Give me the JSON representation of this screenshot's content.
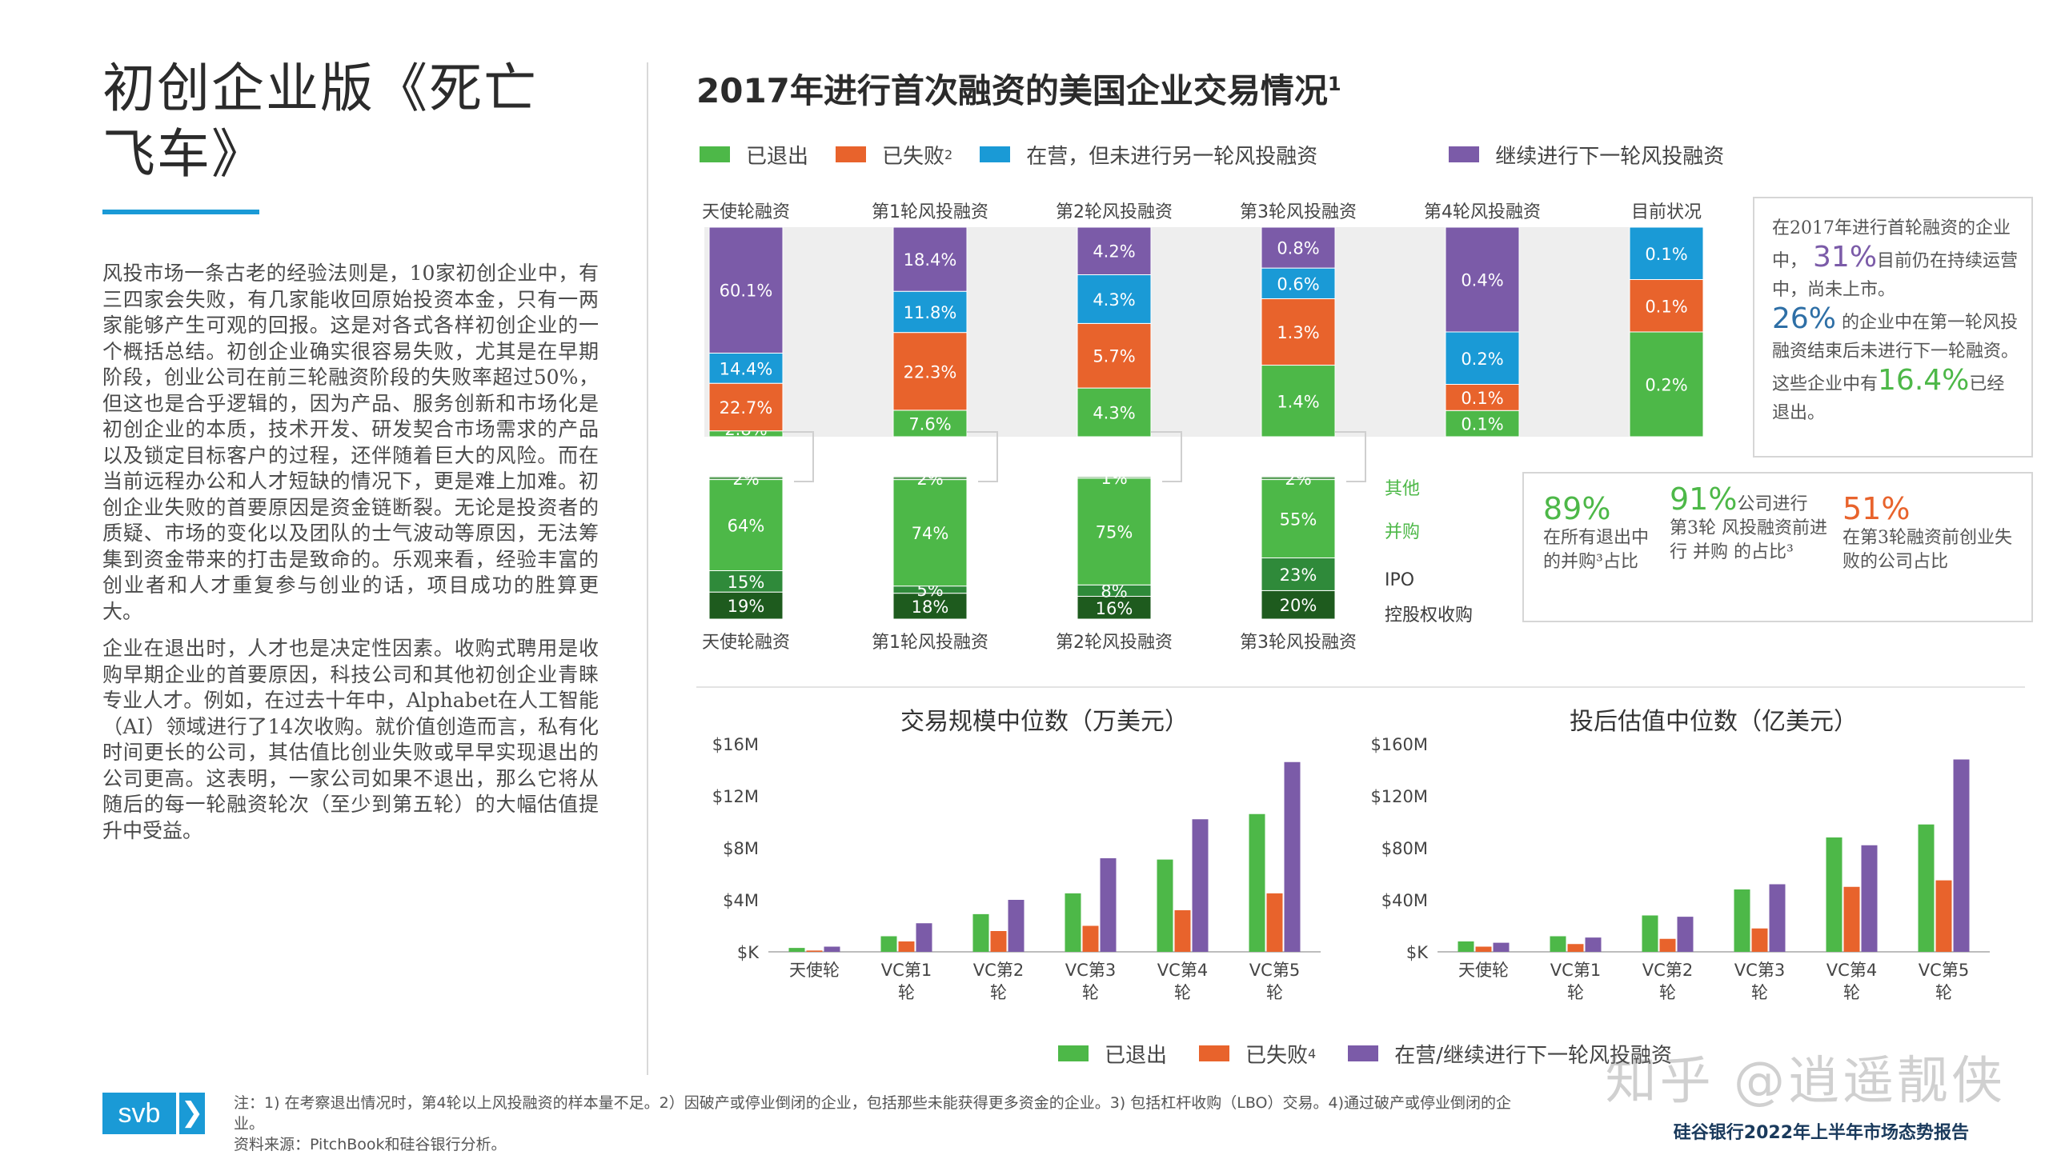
{
  "page": {
    "title_line1": "初创企业版《死亡",
    "title_line2": "飞车》",
    "paragraph1": "风投市场一条古老的经验法则是，10家初创企业中，有三四家会失败，有几家能收回原始投资本金，只有一两家能够产生可观的回报。这是对各式各样初创企业的一个概括总结。初创企业确实很容易失败，尤其是在早期阶段，创业公司在前三轮融资阶段的失败率超过50%，但这也是合乎逻辑的，因为产品、服务创新和市场化是初创企业的本质，技术开发、研发契合市场需求的产品以及锁定目标客户的过程，还伴随着巨大的风险。而在当前远程办公和人才短缺的情况下，更是难上加难。初创企业失败的首要原因是资金链断裂。无论是投资者的质疑、市场的变化以及团队的士气波动等原因，无法筹集到资金带来的打击是致命的。乐观来看，经验丰富的创业者和人才重复参与创业的话，项目成功的胜算更大。",
    "paragraph2": "企业在退出时，人才也是决定性因素。收购式聘用是收购早期企业的首要原因，科技公司和其他初创企业青睐专业人才。例如，在过去十年中，Alphabet在人工智能（AI）领域进行了14次收购。就价值创造而言，私有化时间更长的公司，其估值比创业失败或早早实现退出的公司更高。这表明，一家公司如果不退出，那么它将从随后的每一轮融资轮次（至少到第五轮）的大幅估值提升中受益。",
    "chart_title": "2017年进行首次融资的美国企业交易情况",
    "chart_title_sup": "1",
    "note": "注：1) 在考察退出情况时，第4轮以上风投融资的样本量不足。2）因破产或停业倒闭的企业，包括那些未能获得更多资金的企业。3) 包括杠杆收购（LBO）交易。4)通过破产或停业倒闭的企业。",
    "source": "资料来源：PitchBook和硅谷银行分析。",
    "logo_text": "svb",
    "logo_arrow": "❯",
    "footer": "硅谷银行2022年上半年市场态势报告",
    "watermark": "知乎 @逍遥靓侠"
  },
  "colors": {
    "exited": "#4db848",
    "failed": "#e8632c",
    "active": "#1a9ad6",
    "next_round": "#7b5ba8",
    "accent_blue": "#1a9ad6",
    "dark_green": "#1e5b1e",
    "mid_green": "#2f8a3a",
    "exit_other": "#5fa35f",
    "label_green": "#4db848",
    "label_orange": "#e8632c",
    "label_purple": "#7b5ba8",
    "label_blue": "#2e6fa6"
  },
  "legend_top": [
    {
      "label": "已退出",
      "sup": "",
      "color": "#4db848"
    },
    {
      "label": "已失败",
      "sup": "2",
      "color": "#e8632c"
    },
    {
      "label": "在营，但未进行另一轮风投融资",
      "sup": "",
      "color": "#1a9ad6"
    },
    {
      "label": "继续进行下一轮风投融资",
      "sup": "",
      "color": "#7b5ba8"
    }
  ],
  "info_box_top": {
    "line1": "在2017年进行首轮融资的企业中，",
    "pct1": "31%",
    "line1b": "目前仍在持续运营中，尚未上市。",
    "pct2": "26%",
    "line2": "的企业中在第一轮风投融资结束后未进行下一轮融资。",
    "line3a": "这些企业中有",
    "pct3": "16.4%",
    "line3b": "已经退出。"
  },
  "info_box_bottom": [
    {
      "pct": "89%",
      "text": "在所有退出中的并购³占比"
    },
    {
      "pct": "91%",
      "text_a": "公司进行",
      "text": "第3轮 风投融资前进行 并购 的占比³"
    },
    {
      "pct": "51%",
      "text": "在第3轮融资前创业失败的公司占比"
    }
  ],
  "chart_data": [
    {
      "type": "bar",
      "title": "2017年进行首次融资的美国企业交易情况",
      "subtype": "stacked_100",
      "categories": [
        "天使轮融资",
        "第1轮风投融资",
        "第2轮风投融资",
        "第3轮风投融资",
        "第4轮风投融资",
        "目前状况"
      ],
      "series": [
        {
          "name": "已退出",
          "values": [
            2.8,
            7.6,
            4.3,
            1.4,
            0.1,
            0.2
          ],
          "labels": [
            "2.8%",
            "7.6%",
            "4.3%",
            "1.4%",
            "0.1%",
            "0.2%"
          ]
        },
        {
          "name": "已失败",
          "values": [
            22.7,
            22.3,
            5.7,
            1.3,
            0.1,
            0.1
          ],
          "labels": [
            "22.7%",
            "22.3%",
            "5.7%",
            "1.3%",
            "0.1%",
            "0.1%"
          ]
        },
        {
          "name": "在营，但未进行另一轮风投融资",
          "values": [
            14.4,
            11.8,
            4.3,
            0.6,
            0.2,
            0.1
          ],
          "labels": [
            "14.4%",
            "11.8%",
            "4.3%",
            "0.6%",
            "0.2%",
            "0.1%"
          ]
        },
        {
          "name": "继续进行下一轮风投融资",
          "values": [
            60.1,
            18.4,
            4.2,
            0.8,
            0.4,
            0
          ],
          "labels": [
            "60.1%",
            "18.4%",
            "4.2%",
            "0.8%",
            "0.4%",
            ""
          ]
        }
      ]
    },
    {
      "type": "bar",
      "subtype": "stacked_100",
      "title": "",
      "categories": [
        "天使轮融资",
        "第1轮风投融资",
        "第2轮风投融资",
        "第3轮风投融资"
      ],
      "stack_labels": [
        "其他",
        "并购",
        "IPO",
        "控股权收购"
      ],
      "series": [
        {
          "name": "控股权收购",
          "values": [
            19,
            18,
            16,
            20
          ],
          "labels": [
            "19%",
            "18%",
            "16%",
            "20%"
          ]
        },
        {
          "name": "IPO",
          "values": [
            15,
            5,
            8,
            23
          ],
          "labels": [
            "15%",
            "5%",
            "8%",
            "23%"
          ]
        },
        {
          "name": "并购",
          "values": [
            64,
            74,
            75,
            55
          ],
          "labels": [
            "64%",
            "74%",
            "75%",
            "55%"
          ]
        },
        {
          "name": "其他",
          "values": [
            2,
            2,
            1,
            2
          ],
          "labels": [
            "2%",
            "2%",
            "1%",
            "2%"
          ]
        }
      ]
    },
    {
      "type": "bar",
      "title": "交易规模中位数（万美元）",
      "categories": [
        "天使轮",
        "VC第1轮",
        "VC第2轮",
        "VC第3轮",
        "VC第4轮",
        "VC第5轮"
      ],
      "yticks": [
        "$K",
        "$4M",
        "$8M",
        "$12M",
        "$16M"
      ],
      "ylim": [
        0,
        16
      ],
      "series": [
        {
          "name": "已退出",
          "values": [
            0.3,
            1.2,
            2.9,
            4.5,
            7.1,
            10.6
          ]
        },
        {
          "name": "已失败",
          "values": [
            0.1,
            0.8,
            1.6,
            2.0,
            3.2,
            4.5
          ]
        },
        {
          "name": "在营/继续进行下一轮风投融资",
          "values": [
            0.4,
            2.2,
            4.0,
            7.2,
            10.2,
            14.6
          ]
        }
      ]
    },
    {
      "type": "bar",
      "title": "投后估值中位数（亿美元）",
      "categories": [
        "天使轮",
        "VC第1轮",
        "VC第2轮",
        "VC第3轮",
        "VC第4轮",
        "VC第5轮"
      ],
      "yticks": [
        "$K",
        "$40M",
        "$80M",
        "$120M",
        "$160M"
      ],
      "ylim": [
        0,
        160
      ],
      "series": [
        {
          "name": "已退出",
          "values": [
            8,
            12,
            28,
            48,
            88,
            98
          ]
        },
        {
          "name": "已失败",
          "values": [
            4,
            6,
            10,
            18,
            50,
            55
          ]
        },
        {
          "name": "在营/继续进行下一轮风投融资",
          "values": [
            7,
            11,
            27,
            52,
            82,
            148
          ]
        }
      ]
    }
  ],
  "bottom_legend": [
    {
      "label": "已退出",
      "sup": "",
      "color": "#4db848"
    },
    {
      "label": "已失败",
      "sup": "4",
      "color": "#e8632c"
    },
    {
      "label": "在营/继续进行下一轮风投融资",
      "sup": "",
      "color": "#7b5ba8"
    }
  ]
}
